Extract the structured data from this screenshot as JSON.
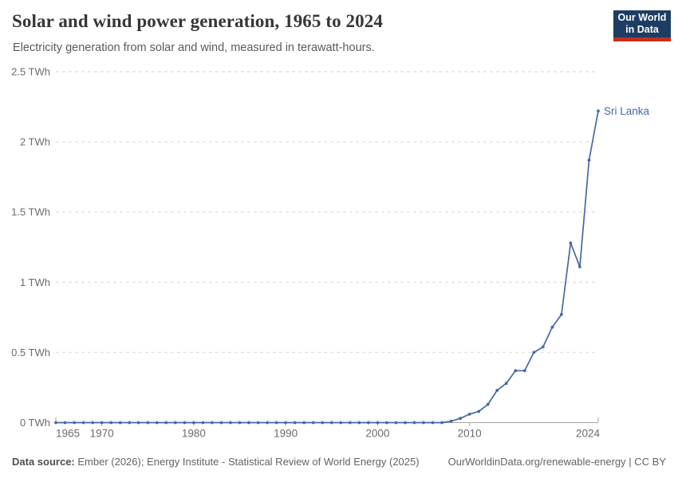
{
  "header": {
    "logo": {
      "line1": "Our World",
      "line2": "in Data",
      "bg_color": "#1d3d63",
      "accent_color": "#c62e1c"
    }
  },
  "chart_data": {
    "type": "line",
    "title": "Solar and wind power generation, 1965 to 2024",
    "subtitle": "Electricity generation from solar and wind, measured in terawatt-hours.",
    "xlabel": "",
    "ylabel": "",
    "xlim": [
      1965,
      2024
    ],
    "ylim": [
      0,
      2.5
    ],
    "grid": "horizontal-dashed",
    "legend_position": "end-of-line-label",
    "x_ticks": [
      {
        "value": 1965,
        "label": "1965"
      },
      {
        "value": 1970,
        "label": "1970"
      },
      {
        "value": 1980,
        "label": "1980"
      },
      {
        "value": 1990,
        "label": "1990"
      },
      {
        "value": 2000,
        "label": "2000"
      },
      {
        "value": 2010,
        "label": "2010"
      },
      {
        "value": 2024,
        "label": "2024"
      }
    ],
    "y_ticks": [
      {
        "value": 0,
        "label": "0 TWh"
      },
      {
        "value": 0.5,
        "label": "0.5 TWh"
      },
      {
        "value": 1,
        "label": "1 TWh"
      },
      {
        "value": 1.5,
        "label": "1.5 TWh"
      },
      {
        "value": 2,
        "label": "2 TWh"
      },
      {
        "value": 2.5,
        "label": "2.5 TWh"
      }
    ],
    "series": [
      {
        "name": "Sri Lanka",
        "color": "#4668a5",
        "marker": "dot",
        "years": [
          1965,
          1966,
          1967,
          1968,
          1969,
          1970,
          1971,
          1972,
          1973,
          1974,
          1975,
          1976,
          1977,
          1978,
          1979,
          1980,
          1981,
          1982,
          1983,
          1984,
          1985,
          1986,
          1987,
          1988,
          1989,
          1990,
          1991,
          1992,
          1993,
          1994,
          1995,
          1996,
          1997,
          1998,
          1999,
          2000,
          2001,
          2002,
          2003,
          2004,
          2005,
          2006,
          2007,
          2008,
          2009,
          2010,
          2011,
          2012,
          2013,
          2014,
          2015,
          2016,
          2017,
          2018,
          2019,
          2020,
          2021,
          2022,
          2023,
          2024
        ],
        "values": [
          0,
          0,
          0,
          0,
          0,
          0,
          0,
          0,
          0,
          0,
          0,
          0,
          0,
          0,
          0,
          0,
          0,
          0,
          0,
          0,
          0,
          0,
          0,
          0,
          0,
          0,
          0,
          0,
          0,
          0,
          0,
          0,
          0,
          0,
          0,
          0,
          0,
          0,
          0,
          0,
          0,
          0,
          0,
          0.01,
          0.03,
          0.06,
          0.08,
          0.13,
          0.23,
          0.28,
          0.37,
          0.37,
          0.5,
          0.54,
          0.68,
          0.77,
          1.28,
          1.11,
          1.87,
          2.22
        ]
      }
    ]
  },
  "footer": {
    "datasource_label": "Data source:",
    "datasource_text": " Ember (2026); Energy Institute - Statistical Review of World Energy (2025)",
    "link_text": "OurWorldinData.org/renewable-energy | CC BY"
  }
}
